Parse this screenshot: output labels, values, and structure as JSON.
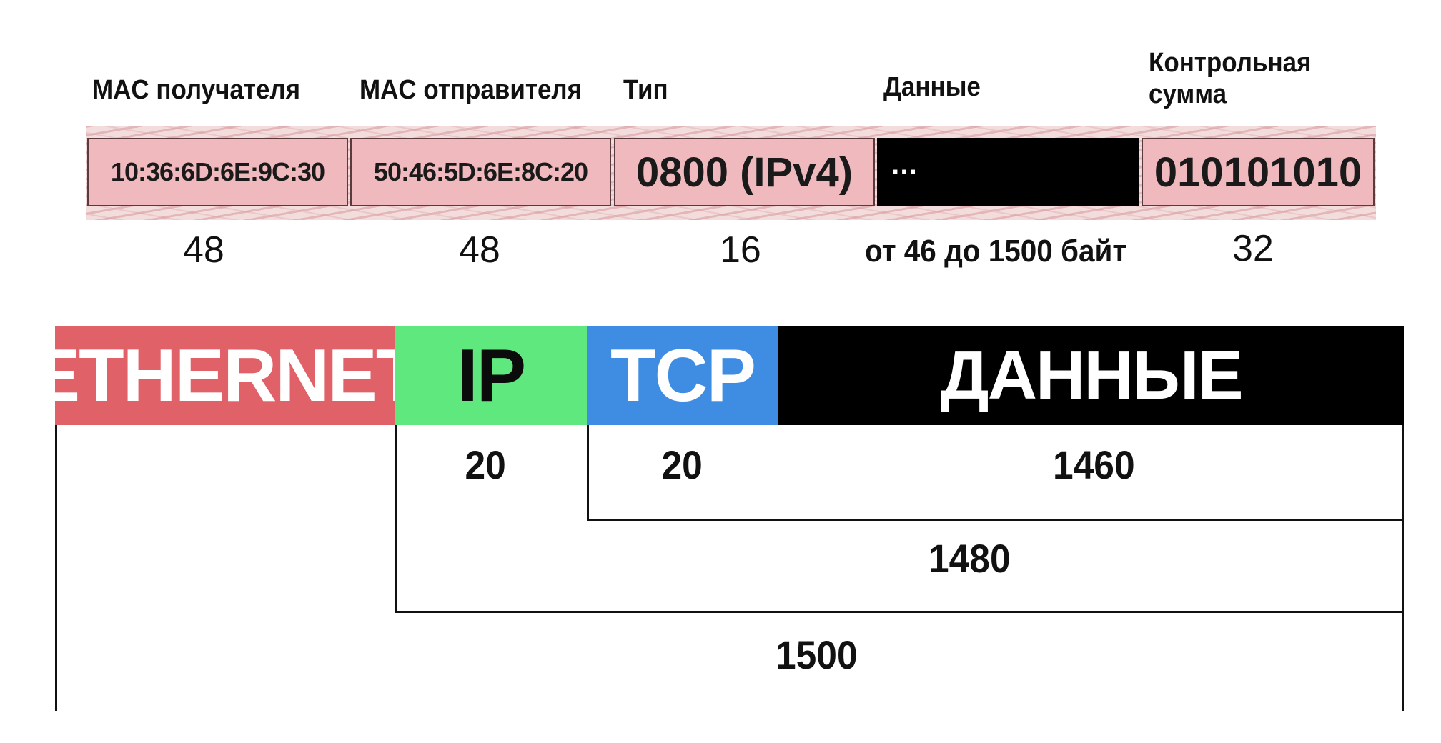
{
  "frame": {
    "headers": {
      "dst_mac": "MAC получателя",
      "src_mac": "MAC отправителя",
      "type": "Тип",
      "data": "Данные",
      "checksum_line1": "Контрольная",
      "checksum_line2": "сумма"
    },
    "fields": {
      "dst_mac": "10:36:6D:6E:9C:30",
      "src_mac": "50:46:5D:6E:8C:20",
      "type": "0800 (IPv4)",
      "data": "···",
      "checksum": "010101010"
    },
    "sizes": {
      "dst_mac": "48",
      "src_mac": "48",
      "type": "16",
      "data": "от 46 до 1500 байт",
      "checksum": "32"
    }
  },
  "encapsulation": {
    "labels": {
      "ethernet": "ETHERNET",
      "ip": "IP",
      "tcp": "TCP",
      "data": "ДАННЫЕ"
    },
    "sizes": {
      "ip": "20",
      "tcp": "20",
      "data": "1460",
      "tcp_segment": "1480",
      "ip_packet": "1500"
    }
  },
  "colors": {
    "ethernet": "#e06268",
    "ip": "#5ee87e",
    "tcp": "#3f8de3",
    "data": "#000000",
    "frame_field": "#efb9bd"
  }
}
